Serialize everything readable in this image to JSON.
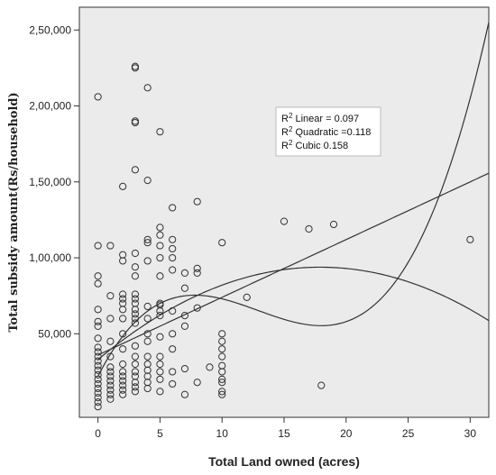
{
  "chart_data": {
    "type": "scatter",
    "xlabel": "Total Land owned (acres)",
    "ylabel": "Total subsidy amount(Rs/household)",
    "xlim": [
      -1.5,
      31.5
    ],
    "ylim": [
      -5000,
      265000
    ],
    "x_ticks": [
      0,
      5,
      10,
      15,
      20,
      25,
      30
    ],
    "x_tick_labels": [
      "0",
      "5",
      "10",
      "15",
      "20",
      "25",
      "30"
    ],
    "y_ticks": [
      50000,
      100000,
      150000,
      200000,
      250000
    ],
    "y_tick_labels": [
      "50,000",
      "1,00,000",
      "1,50,000",
      "2,00,000",
      "2,50,000"
    ],
    "grid": false,
    "background": "#ebebeb",
    "legend": {
      "placement": "top-right",
      "entries": [
        {
          "sup": "2",
          "base": "R",
          "text": " Linear = 0.097"
        },
        {
          "sup": "2",
          "base": "R",
          "text": " Quadratic =0.118"
        },
        {
          "sup": "2",
          "base": "R",
          "text": " Cubic 0.158"
        }
      ]
    },
    "fits": [
      {
        "name": "Linear",
        "coef": [
          36000,
          3800
        ]
      },
      {
        "name": "Quadratic",
        "coef": [
          33000,
          6800,
          -190
        ]
      },
      {
        "name": "Cubic",
        "coef": [
          22000,
          16000,
          -1470,
          38
        ]
      }
    ],
    "points": [
      [
        0,
        2000
      ],
      [
        0,
        5000
      ],
      [
        0,
        8000
      ],
      [
        0,
        11000
      ],
      [
        0,
        14000
      ],
      [
        0,
        17000
      ],
      [
        0,
        20000
      ],
      [
        0,
        23000
      ],
      [
        0,
        26000
      ],
      [
        0,
        29000
      ],
      [
        0,
        32000
      ],
      [
        0,
        35000
      ],
      [
        0,
        38000
      ],
      [
        0,
        41000
      ],
      [
        0,
        47000
      ],
      [
        0,
        55000
      ],
      [
        0,
        58000
      ],
      [
        0,
        66000
      ],
      [
        0,
        83000
      ],
      [
        0,
        88000
      ],
      [
        0,
        108000
      ],
      [
        0,
        206000
      ],
      [
        1,
        7000
      ],
      [
        1,
        10000
      ],
      [
        1,
        13000
      ],
      [
        1,
        16000
      ],
      [
        1,
        19000
      ],
      [
        1,
        22000
      ],
      [
        1,
        25000
      ],
      [
        1,
        28000
      ],
      [
        1,
        35000
      ],
      [
        1,
        45000
      ],
      [
        1,
        60000
      ],
      [
        1,
        75000
      ],
      [
        1,
        108000
      ],
      [
        2,
        10000
      ],
      [
        2,
        13000
      ],
      [
        2,
        16000
      ],
      [
        2,
        19000
      ],
      [
        2,
        22000
      ],
      [
        2,
        25000
      ],
      [
        2,
        30000
      ],
      [
        2,
        40000
      ],
      [
        2,
        50000
      ],
      [
        2,
        60000
      ],
      [
        2,
        66000
      ],
      [
        2,
        70000
      ],
      [
        2,
        73000
      ],
      [
        2,
        76000
      ],
      [
        2,
        98000
      ],
      [
        2,
        102000
      ],
      [
        2,
        147000
      ],
      [
        3,
        12000
      ],
      [
        3,
        15000
      ],
      [
        3,
        18000
      ],
      [
        3,
        22000
      ],
      [
        3,
        25000
      ],
      [
        3,
        30000
      ],
      [
        3,
        35000
      ],
      [
        3,
        42000
      ],
      [
        3,
        57000
      ],
      [
        3,
        60000
      ],
      [
        3,
        63000
      ],
      [
        3,
        66000
      ],
      [
        3,
        70000
      ],
      [
        3,
        73000
      ],
      [
        3,
        76000
      ],
      [
        3,
        88000
      ],
      [
        3,
        94000
      ],
      [
        3,
        103000
      ],
      [
        3,
        158000
      ],
      [
        3,
        189000
      ],
      [
        3,
        190000
      ],
      [
        3,
        225000
      ],
      [
        3,
        226000
      ],
      [
        4,
        14000
      ],
      [
        4,
        18000
      ],
      [
        4,
        22000
      ],
      [
        4,
        26000
      ],
      [
        4,
        30000
      ],
      [
        4,
        35000
      ],
      [
        4,
        45000
      ],
      [
        4,
        50000
      ],
      [
        4,
        60000
      ],
      [
        4,
        68000
      ],
      [
        4,
        98000
      ],
      [
        4,
        110000
      ],
      [
        4,
        112000
      ],
      [
        4,
        151000
      ],
      [
        4,
        212000
      ],
      [
        5,
        12000
      ],
      [
        5,
        20000
      ],
      [
        5,
        25000
      ],
      [
        5,
        30000
      ],
      [
        5,
        35000
      ],
      [
        5,
        48000
      ],
      [
        5,
        62000
      ],
      [
        5,
        65000
      ],
      [
        5,
        69000
      ],
      [
        5,
        70000
      ],
      [
        5,
        88000
      ],
      [
        5,
        100000
      ],
      [
        5,
        108000
      ],
      [
        5,
        115000
      ],
      [
        5,
        120000
      ],
      [
        5,
        183000
      ],
      [
        6,
        17000
      ],
      [
        6,
        25000
      ],
      [
        6,
        40000
      ],
      [
        6,
        50000
      ],
      [
        6,
        65000
      ],
      [
        6,
        92000
      ],
      [
        6,
        100000
      ],
      [
        6,
        106000
      ],
      [
        6,
        112000
      ],
      [
        6,
        133000
      ],
      [
        7,
        10000
      ],
      [
        7,
        27000
      ],
      [
        7,
        55000
      ],
      [
        7,
        62000
      ],
      [
        7,
        80000
      ],
      [
        7,
        90000
      ],
      [
        8,
        18000
      ],
      [
        8,
        67000
      ],
      [
        8,
        90000
      ],
      [
        8,
        93000
      ],
      [
        8,
        137000
      ],
      [
        9,
        28000
      ],
      [
        10,
        10000
      ],
      [
        10,
        12000
      ],
      [
        10,
        18000
      ],
      [
        10,
        20000
      ],
      [
        10,
        25000
      ],
      [
        10,
        29000
      ],
      [
        10,
        35000
      ],
      [
        10,
        40000
      ],
      [
        10,
        45000
      ],
      [
        10,
        50000
      ],
      [
        10,
        110000
      ],
      [
        12,
        74000
      ],
      [
        15,
        124000
      ],
      [
        17,
        119000
      ],
      [
        18,
        16000
      ],
      [
        19,
        122000
      ],
      [
        30,
        112000
      ]
    ]
  }
}
